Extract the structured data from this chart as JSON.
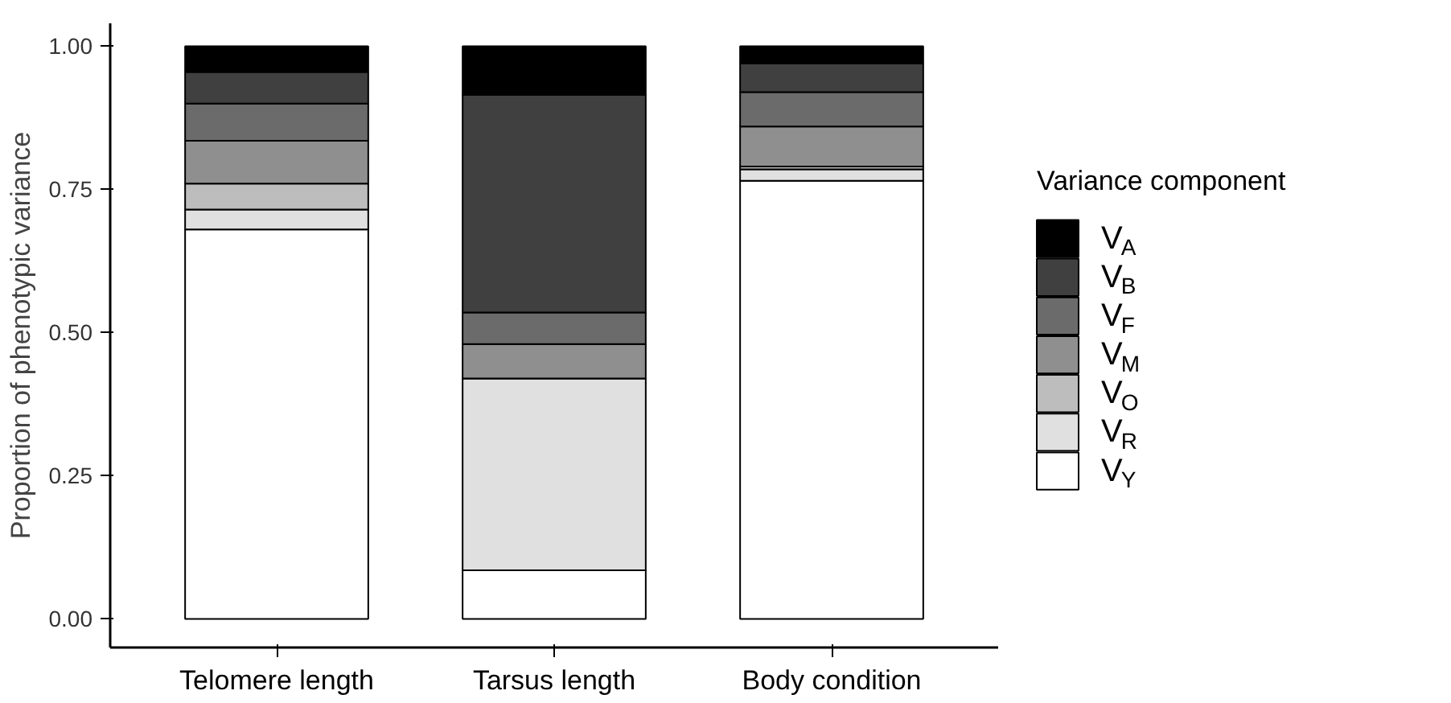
{
  "chart_data": {
    "type": "bar",
    "stacked": true,
    "ylabel": "Proportion of phenotypic variance",
    "legend_title": "Variance component",
    "legend": "right",
    "grid": false,
    "categories": [
      "Telomere length",
      "Tarsus length",
      "Body condition"
    ],
    "ylim": [
      -0.05,
      1.04
    ],
    "yticks": [
      {
        "value": 0,
        "label": "0.00"
      },
      {
        "value": 0.25,
        "label": "0.25"
      },
      {
        "value": 0.5,
        "label": "0.50"
      },
      {
        "value": 0.75,
        "label": "0.75"
      },
      {
        "value": 1,
        "label": "1.00"
      }
    ],
    "series": [
      {
        "name": "V$_{Y}$",
        "color": "#ffffff",
        "values": [
          0.68,
          0.085,
          0.765
        ]
      },
      {
        "name": "V$_{R}$",
        "color": "#e0e0e0",
        "values": [
          0.035,
          0.335,
          0.02
        ]
      },
      {
        "name": "V$_{O}$",
        "color": "#bdbdbd",
        "values": [
          0.045,
          0,
          0.005
        ]
      },
      {
        "name": "V$_{M}$",
        "color": "#8f8f8f",
        "values": [
          0.075,
          0.06,
          0.07
        ]
      },
      {
        "name": "V$_{F}$",
        "color": "#6b6b6b",
        "values": [
          0.065,
          0.055,
          0.06
        ]
      },
      {
        "name": "V$_{B}$",
        "color": "#404040",
        "values": [
          0.055,
          0.38,
          0.05
        ]
      },
      {
        "name": "V$_{A}$",
        "color": "#000000",
        "values": [
          0.045,
          0.085,
          0.03
        ]
      }
    ]
  }
}
